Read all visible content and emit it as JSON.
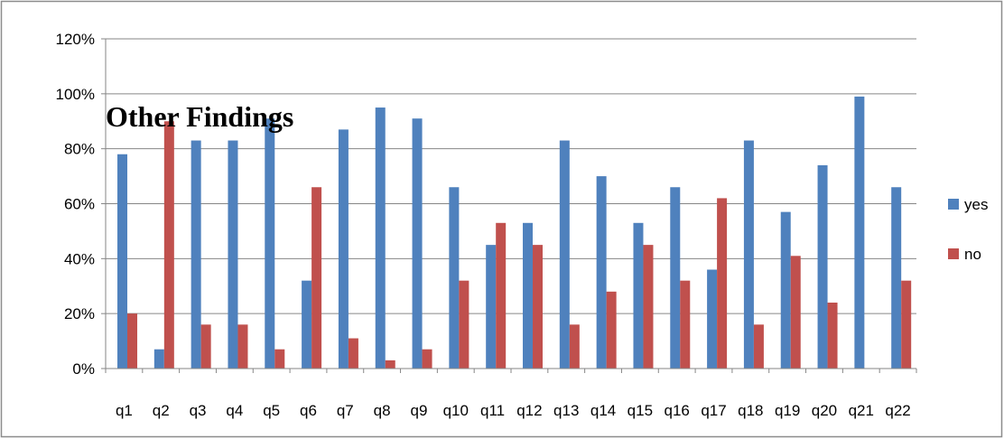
{
  "chart_data": {
    "type": "bar",
    "title": "Other Findings",
    "categories": [
      "q1",
      "q2",
      "q3",
      "q4",
      "q5",
      "q6",
      "q7",
      "q8",
      "q9",
      "q10",
      "q11",
      "q12",
      "q13",
      "q14",
      "q15",
      "q16",
      "q17",
      "q18",
      "q19",
      "q20",
      "q21",
      "q22"
    ],
    "series": [
      {
        "name": "yes",
        "color": "#4F81BD",
        "values": [
          78,
          7,
          83,
          83,
          91,
          32,
          87,
          95,
          91,
          66,
          45,
          53,
          83,
          70,
          53,
          66,
          36,
          83,
          57,
          74,
          99,
          66
        ]
      },
      {
        "name": "no",
        "color": "#C0504D",
        "values": [
          20,
          90,
          16,
          16,
          7,
          66,
          11,
          3,
          7,
          32,
          53,
          45,
          16,
          28,
          45,
          32,
          62,
          16,
          41,
          24,
          0,
          32
        ]
      }
    ],
    "ylim": [
      0,
      120
    ],
    "yticks": [
      0,
      20,
      40,
      60,
      80,
      100,
      120
    ],
    "ytick_labels": [
      "0%",
      "20%",
      "40%",
      "60%",
      "80%",
      "100%",
      "120%"
    ],
    "xlabel": "",
    "ylabel": "",
    "grid": "horizontal",
    "legend_position": "right"
  }
}
